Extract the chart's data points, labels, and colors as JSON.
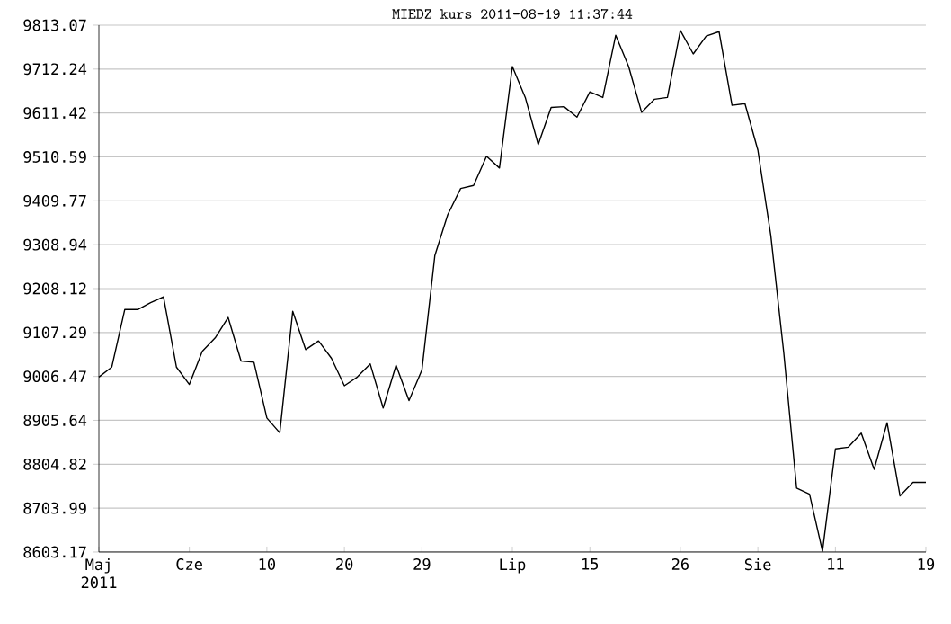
{
  "chart_data": {
    "type": "line",
    "title": "MIEDZ kurs  2011-08-19 11:37:44",
    "categories": [
      "Maj 2011",
      null,
      null,
      null,
      null,
      null,
      null,
      "Cze",
      null,
      null,
      null,
      null,
      null,
      "10",
      null,
      null,
      null,
      null,
      null,
      "20",
      null,
      null,
      null,
      null,
      null,
      "29",
      null,
      null,
      null,
      null,
      null,
      null,
      "Lip",
      null,
      null,
      null,
      null,
      null,
      "15",
      null,
      null,
      null,
      null,
      null,
      null,
      "26",
      null,
      null,
      null,
      null,
      null,
      "Sie",
      null,
      null,
      null,
      null,
      null,
      "11",
      null,
      null,
      null,
      null,
      null,
      null,
      "19"
    ],
    "series": [
      {
        "color": "#000000",
        "values": [
          9005,
          9028,
          9160,
          9160,
          9176,
          9189,
          9028,
          8988,
          9064,
          9095,
          9142,
          9042,
          9039,
          8911,
          8877,
          9156,
          9068,
          9088,
          9048,
          8985,
          9005,
          9035,
          8934,
          9032,
          8951,
          9021,
          9284,
          9378,
          9438,
          9445,
          9512,
          9485,
          9718,
          9647,
          9539,
          9624,
          9626,
          9602,
          9660,
          9647,
          9790,
          9718,
          9613,
          9643,
          9647,
          9801,
          9747,
          9788,
          9798,
          9629,
          9633,
          9526,
          9330,
          9062,
          8750,
          8736,
          8605,
          8840,
          8844,
          8876,
          8793,
          8900,
          8732,
          8763,
          8763
        ]
      }
    ],
    "ylim": [
      8603.17,
      9813.07
    ],
    "yticks": [
      {
        "value": 8603.17,
        "label": "8603.17"
      },
      {
        "value": 8703.99,
        "label": "8703.99"
      },
      {
        "value": 8804.82,
        "label": "8804.82"
      },
      {
        "value": 8905.64,
        "label": "8905.64"
      },
      {
        "value": 9006.47,
        "label": "9006.47"
      },
      {
        "value": 9107.29,
        "label": "9107.29"
      },
      {
        "value": 9208.12,
        "label": "9208.12"
      },
      {
        "value": 9308.94,
        "label": "9308.94"
      },
      {
        "value": 9409.77,
        "label": "9409.77"
      },
      {
        "value": 9510.59,
        "label": "9510.59"
      },
      {
        "value": 9611.42,
        "label": "9611.42"
      },
      {
        "value": 9712.24,
        "label": "9712.24"
      },
      {
        "value": 9813.07,
        "label": "9813.07"
      }
    ],
    "grid": "y",
    "marker": "none",
    "line_style": "solid"
  }
}
